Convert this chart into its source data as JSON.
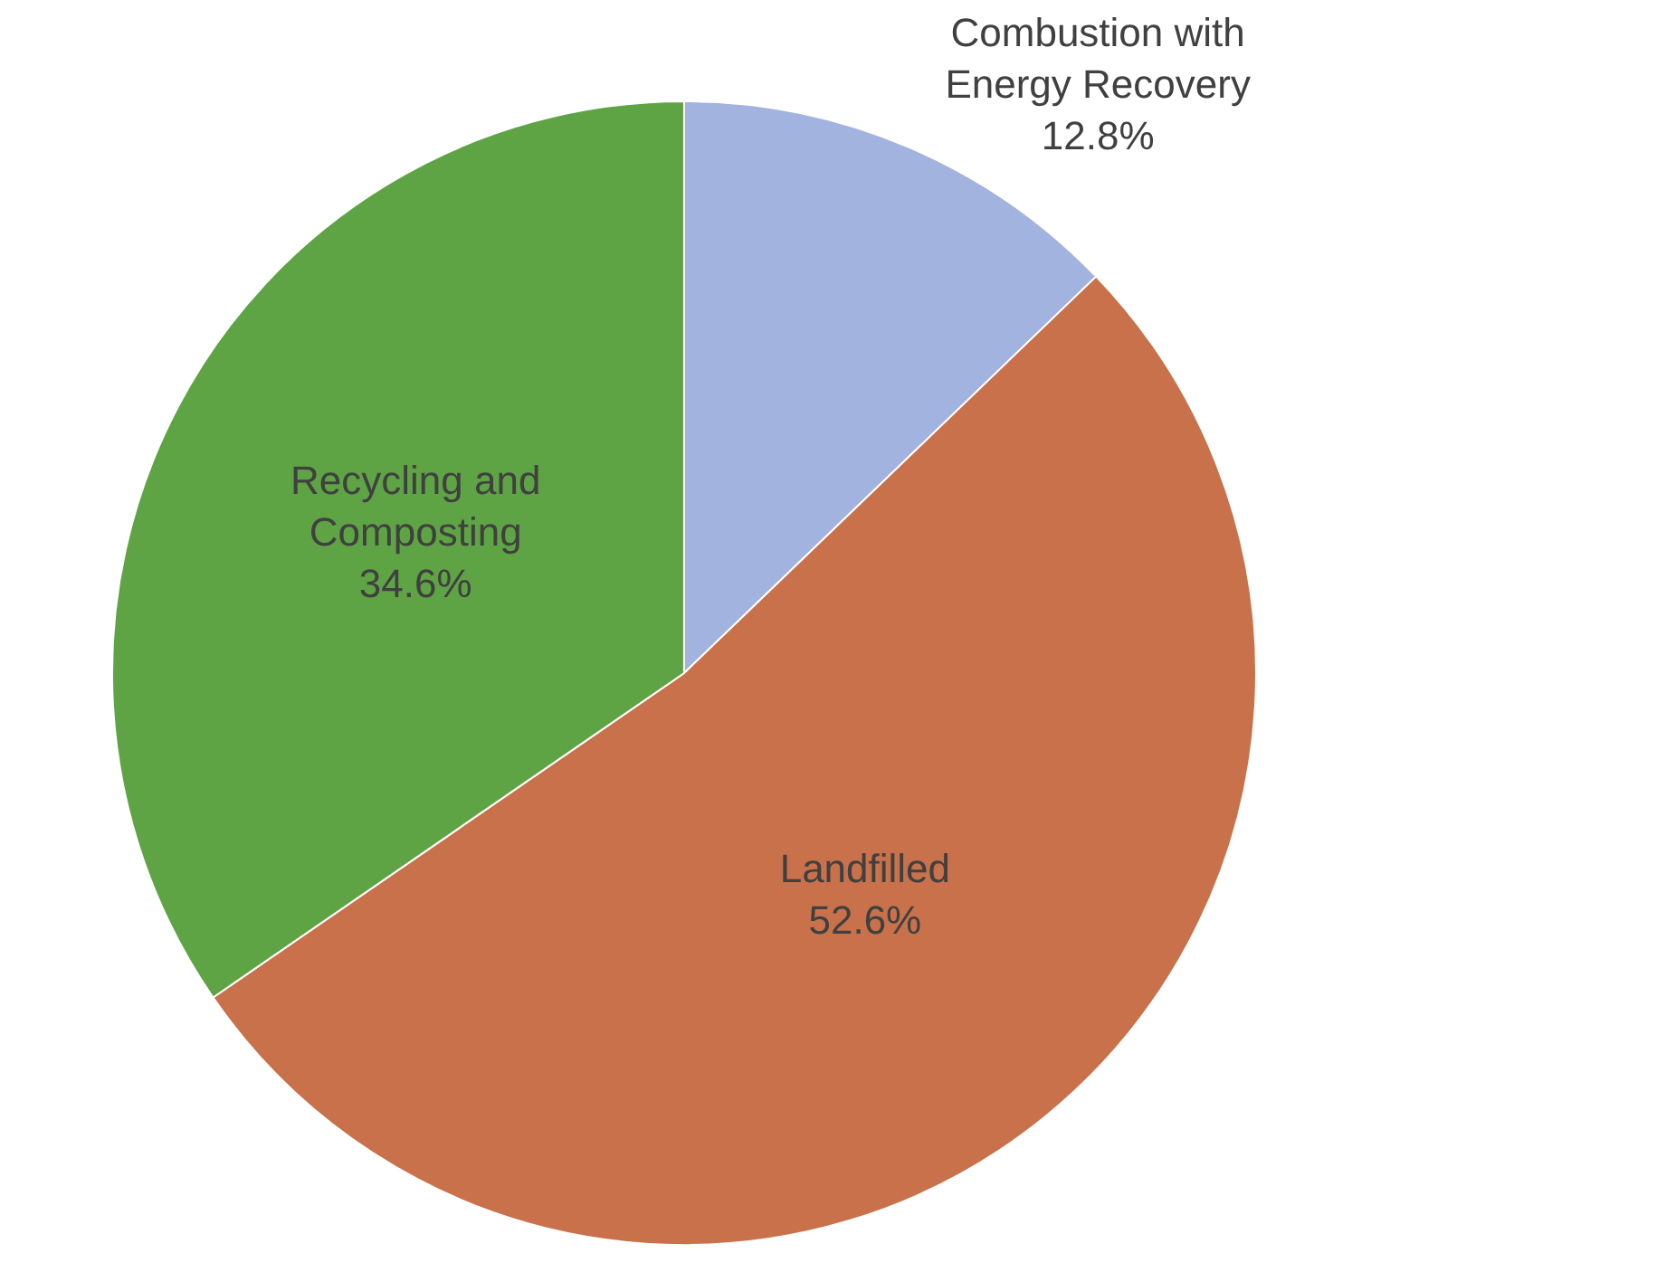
{
  "chart_data": {
    "type": "pie",
    "categories": [
      "Combustion with Energy Recovery",
      "Landfilled",
      "Recycling and Composting"
    ],
    "values": [
      12.8,
      52.6,
      34.6
    ],
    "value_labels": [
      "12.8%",
      "52.6%",
      "34.6%"
    ],
    "colors": [
      "#a3b3df",
      "#c8714a",
      "#5ea444"
    ],
    "legend": false
  }
}
